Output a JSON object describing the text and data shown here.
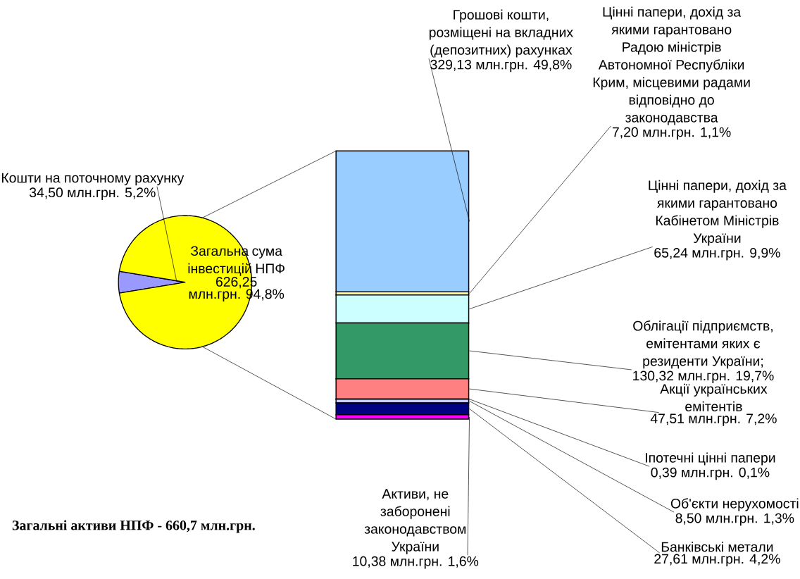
{
  "chart_data": [
    {
      "type": "pie",
      "title": "Загальні активи НПФ - 660,7 млн.грн.",
      "categories": [
        "Кошти на поточному рахунку",
        "Загальна сума інвестицій НПФ"
      ],
      "values": [
        34.5,
        626.25
      ],
      "colors": [
        "#9999ff",
        "#ffff00"
      ],
      "value_labels": [
        "34,50 млн.грн. 5,2%",
        "626,25 млн.грн. 94,8%"
      ]
    },
    {
      "type": "bar",
      "stacked": true,
      "categories": [
        null
      ],
      "series": [
        {
          "name": "Активи, не заборонені законодавством України",
          "color": "#ff00ff",
          "values": [
            10.38
          ],
          "value_labels": [
            "10,38 млн.грн. 1,6%"
          ]
        },
        {
          "name": "Банківські метали",
          "color": "#000080",
          "values": [
            27.61
          ],
          "value_labels": [
            "27,61 млн.грн. 4,2%"
          ]
        },
        {
          "name": "Об'єкти нерухомості",
          "color": "#ccccff",
          "values": [
            8.5
          ],
          "value_labels": [
            "8,50 млн.грн. 1,3%"
          ]
        },
        {
          "name": "Іпотечні цінні папери",
          "color": "#c0c0c0",
          "values": [
            0.39
          ],
          "value_labels": [
            "0,39 млн.грн. 0,1%"
          ]
        },
        {
          "name": "Акції українських емітентів",
          "color": "#ff8080",
          "values": [
            47.51
          ],
          "value_labels": [
            "47,51 млн.грн. 7,2%"
          ]
        },
        {
          "name": "Облігації підприємств, емітентами яких є резиденти України;",
          "color": "#339966",
          "values": [
            130.32
          ],
          "value_labels": [
            "130,32 млн.грн. 19,7%"
          ]
        },
        {
          "name": "Цінні папери, дохід за якими гарантовано Кабінетом Міністрів України",
          "color": "#ccffff",
          "values": [
            65.24
          ],
          "value_labels": [
            "65,24 млн.грн. 9,9%"
          ]
        },
        {
          "name": "Цінні папери, дохід за якими гарантовано Радою міністрів Автономної Республіки Крим, місцевими радами відповідно до законодавства",
          "color": "#ffff99",
          "values": [
            7.2
          ],
          "value_labels": [
            "7,20 млн.грн.  1,1%"
          ]
        },
        {
          "name": "Грошові кошти, розміщені на вкладних (депозитних) рахунках",
          "color": "#99ccff",
          "values": [
            329.13
          ],
          "value_labels": [
            "329,13 млн.грн.  49,8%"
          ]
        }
      ]
    }
  ]
}
